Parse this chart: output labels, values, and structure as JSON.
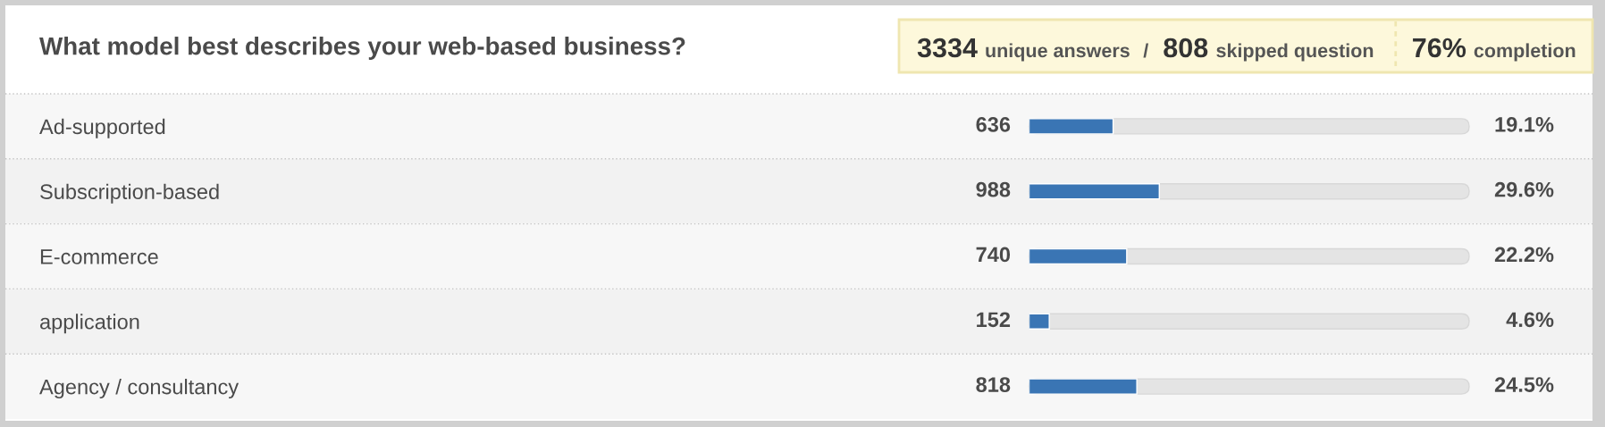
{
  "chart_data": {
    "type": "bar",
    "orientation": "horizontal",
    "title": "What model best describes your web-based business?",
    "categories": [
      "Ad-supported",
      "Subscription-based",
      "E-commerce",
      "application",
      "Agency / consultancy"
    ],
    "values": [
      19.1,
      29.6,
      22.2,
      4.6,
      24.5
    ],
    "color": "#3a75b4",
    "tick_labels": "y",
    "value_labels": [
      "19.1%",
      "29.6%",
      "22.2%",
      "4.6%",
      "24.5%"
    ],
    "annotations": [
      "3334 unique answers",
      "/",
      "808 skipped question",
      "76% completion",
      "636",
      "988",
      "740",
      "152",
      "818"
    ]
  }
}
